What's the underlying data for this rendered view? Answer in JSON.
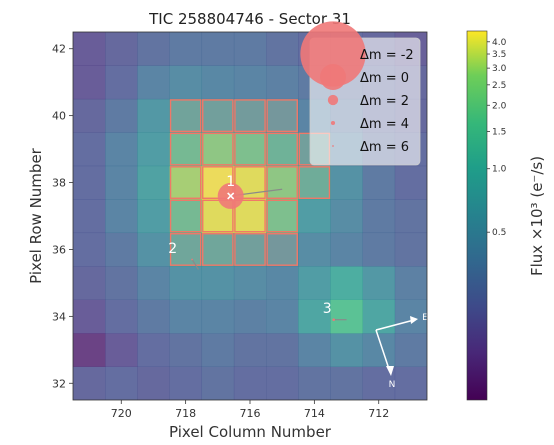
{
  "chart_data": {
    "type": "heatmap",
    "title": "TIC 258804746 - Sector 31",
    "xlabel": "Pixel Column Number",
    "ylabel": "Pixel Row Number",
    "xlim": [
      721.5,
      710.5
    ],
    "ylim": [
      31.5,
      42.5
    ],
    "x_inverted": true,
    "x_ticks": [
      {
        "v": 720,
        "label": "720"
      },
      {
        "v": 718,
        "label": "718"
      },
      {
        "v": 716,
        "label": "716"
      },
      {
        "v": 714,
        "label": "714"
      },
      {
        "v": 712,
        "label": "712"
      }
    ],
    "y_ticks": [
      {
        "v": 32,
        "label": "32"
      },
      {
        "v": 34,
        "label": "34"
      },
      {
        "v": 36,
        "label": "36"
      },
      {
        "v": 38,
        "label": "38"
      },
      {
        "v": 40,
        "label": "40"
      },
      {
        "v": 42,
        "label": "42"
      }
    ],
    "col_start": 721,
    "row_start": 32,
    "flux_grid": [
      [
        0.18,
        0.2,
        0.18,
        0.2,
        0.22,
        0.2,
        0.2,
        0.22,
        0.22,
        0.2,
        0.2
      ],
      [
        0.1,
        0.15,
        0.2,
        0.22,
        0.25,
        0.22,
        0.22,
        0.3,
        0.4,
        0.32,
        0.25
      ],
      [
        0.15,
        0.2,
        0.25,
        0.3,
        0.3,
        0.28,
        0.3,
        0.6,
        1.1,
        0.6,
        0.3
      ],
      [
        0.18,
        0.22,
        0.3,
        0.4,
        0.4,
        0.35,
        0.32,
        0.5,
        0.7,
        0.45,
        0.28
      ],
      [
        0.2,
        0.25,
        0.4,
        0.6,
        0.6,
        0.5,
        0.4,
        0.35,
        0.3,
        0.25,
        0.22
      ],
      [
        0.2,
        0.3,
        0.5,
        1.0,
        3.5,
        3.5,
        1.2,
        0.5,
        0.35,
        0.25,
        0.22
      ],
      [
        0.2,
        0.3,
        0.55,
        2.0,
        4.0,
        3.5,
        1.5,
        0.7,
        0.4,
        0.25,
        0.2
      ],
      [
        0.2,
        0.3,
        0.5,
        1.0,
        1.5,
        1.2,
        0.8,
        0.5,
        0.3,
        0.22,
        0.2
      ],
      [
        0.18,
        0.25,
        0.45,
        0.55,
        0.5,
        0.45,
        0.4,
        0.3,
        0.25,
        0.2,
        0.18
      ],
      [
        0.15,
        0.2,
        0.3,
        0.35,
        0.32,
        0.3,
        0.28,
        0.25,
        0.22,
        0.2,
        0.18
      ],
      [
        0.15,
        0.18,
        0.22,
        0.25,
        0.25,
        0.25,
        0.22,
        0.2,
        0.2,
        0.18,
        0.16
      ]
    ],
    "aperture_pixels": [
      [
        718,
        40
      ],
      [
        717,
        40
      ],
      [
        716,
        40
      ],
      [
        715,
        40
      ],
      [
        718,
        39
      ],
      [
        717,
        39
      ],
      [
        716,
        39
      ],
      [
        715,
        39
      ],
      [
        714,
        39
      ],
      [
        718,
        38
      ],
      [
        717,
        38
      ],
      [
        716,
        38
      ],
      [
        715,
        38
      ],
      [
        714,
        38
      ],
      [
        718,
        37
      ],
      [
        717,
        37
      ],
      [
        716,
        37
      ],
      [
        715,
        37
      ],
      [
        718,
        36
      ],
      [
        717,
        36
      ],
      [
        716,
        36
      ],
      [
        715,
        36
      ]
    ],
    "aperture_color": "#f07868",
    "aperture_fill": "#e8a880",
    "stars": [
      {
        "label": "1",
        "x": 716.6,
        "y": 37.6,
        "dm": 0,
        "motion_to": [
          715.0,
          37.8
        ],
        "label_dx": 0,
        "label_dy": 0.3
      },
      {
        "label": "2",
        "x": 717.8,
        "y": 35.7,
        "dm": 6,
        "motion_to": [
          717.6,
          35.4
        ],
        "label_dx": 0.6,
        "label_dy": 0.2
      },
      {
        "label": "3",
        "x": 713.4,
        "y": 33.9,
        "dm": 5,
        "motion_to": [
          713.0,
          33.9
        ],
        "label_dx": 0.2,
        "label_dy": 0.2
      }
    ],
    "star_color": "#f07878",
    "legend": {
      "placement": "top-right",
      "entries": [
        {
          "label": "Δm =  -2",
          "dm": -2
        },
        {
          "label": "Δm =  0",
          "dm": 0
        },
        {
          "label": "Δm =  2",
          "dm": 2
        },
        {
          "label": "Δm =  4",
          "dm": 4
        },
        {
          "label": "Δm =  6",
          "dm": 6
        }
      ]
    },
    "colorbar": {
      "label": "Flux ×10³ (e⁻/s)",
      "scale": "log",
      "min": 0.08,
      "max": 4.5,
      "colormap": "viridis",
      "ticks": [
        {
          "v": 4.0,
          "label": "4.0"
        },
        {
          "v": 3.5,
          "label": "3.5"
        },
        {
          "v": 3.0,
          "label": "3.0"
        },
        {
          "v": 2.5,
          "label": "2.5"
        },
        {
          "v": 2.0,
          "label": "2.0"
        },
        {
          "v": 1.5,
          "label": "1.5"
        },
        {
          "v": 1.0,
          "label": "1.0"
        },
        {
          "v": 0.5,
          "label": "0.5"
        }
      ]
    },
    "compass": {
      "north_label": "N",
      "east_label": "E"
    },
    "image_alpha": 0.8,
    "grid": false
  }
}
